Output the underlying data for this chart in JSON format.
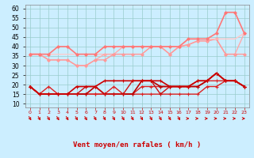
{
  "xlabel": "Vent moyen/en rafales ( km/h )",
  "x": [
    0,
    1,
    2,
    3,
    4,
    5,
    6,
    7,
    8,
    9,
    10,
    11,
    12,
    13,
    14,
    15,
    16,
    17,
    18,
    19,
    20,
    21,
    22,
    23
  ],
  "ylim": [
    8,
    62
  ],
  "bg_color": "#cceeff",
  "grid_color": "#99cccc",
  "series": [
    {
      "y": [
        36,
        36,
        36,
        36,
        36,
        36,
        36,
        36,
        36,
        36,
        36,
        36,
        36,
        40,
        40,
        40,
        40,
        44,
        44,
        44,
        44,
        44,
        44,
        47
      ],
      "color": "#ffbbbb",
      "lw": 0.8,
      "marker": null,
      "ms": 0
    },
    {
      "y": [
        36,
        36,
        33,
        33,
        33,
        30,
        30,
        33,
        36,
        36,
        40,
        40,
        40,
        40,
        40,
        36,
        40,
        41,
        43,
        43,
        44,
        36,
        36,
        47
      ],
      "color": "#ffaaaa",
      "lw": 1.0,
      "marker": "D",
      "ms": 1.8
    },
    {
      "y": [
        36,
        36,
        33,
        33,
        33,
        30,
        30,
        33,
        33,
        36,
        36,
        36,
        36,
        40,
        40,
        36,
        40,
        41,
        43,
        43,
        44,
        36,
        36,
        36
      ],
      "color": "#ff9999",
      "lw": 1.0,
      "marker": "D",
      "ms": 1.8
    },
    {
      "y": [
        36,
        36,
        36,
        36,
        36,
        36,
        36,
        36,
        40,
        40,
        40,
        40,
        40,
        40,
        40,
        40,
        40,
        44,
        44,
        44,
        44,
        44,
        44,
        47
      ],
      "color": "#ffcccc",
      "lw": 0.8,
      "marker": null,
      "ms": 0
    },
    {
      "y": [
        36,
        36,
        36,
        40,
        40,
        36,
        36,
        36,
        40,
        40,
        40,
        40,
        40,
        40,
        40,
        40,
        40,
        44,
        44,
        44,
        47,
        58,
        58,
        47
      ],
      "color": "#ff7777",
      "lw": 1.2,
      "marker": "D",
      "ms": 1.8
    },
    {
      "y": [
        19,
        15,
        19,
        15,
        15,
        15,
        15,
        15,
        15,
        19,
        15,
        15,
        15,
        15,
        15,
        15,
        15,
        15,
        15,
        19,
        19,
        22,
        22,
        19
      ],
      "color": "#dd2222",
      "lw": 1.0,
      "marker": "+",
      "ms": 3
    },
    {
      "y": [
        19,
        15,
        15,
        15,
        15,
        15,
        15,
        15,
        15,
        15,
        15,
        15,
        19,
        19,
        19,
        19,
        19,
        19,
        19,
        22,
        22,
        22,
        22,
        19
      ],
      "color": "#dd2222",
      "lw": 1.0,
      "marker": "+",
      "ms": 3
    },
    {
      "y": [
        19,
        15,
        15,
        15,
        15,
        15,
        15,
        19,
        15,
        15,
        15,
        15,
        22,
        22,
        19,
        19,
        19,
        19,
        19,
        22,
        26,
        22,
        22,
        19
      ],
      "color": "#bb0000",
      "lw": 1.2,
      "marker": "+",
      "ms": 3
    },
    {
      "y": [
        19,
        15,
        15,
        15,
        15,
        15,
        19,
        19,
        15,
        15,
        15,
        22,
        22,
        22,
        15,
        19,
        19,
        19,
        22,
        22,
        26,
        22,
        22,
        19
      ],
      "color": "#cc1111",
      "lw": 1.0,
      "marker": "+",
      "ms": 3
    },
    {
      "y": [
        19,
        15,
        15,
        15,
        15,
        19,
        19,
        19,
        22,
        22,
        22,
        22,
        22,
        22,
        22,
        19,
        19,
        19,
        22,
        22,
        26,
        22,
        22,
        19
      ],
      "color": "#cc0000",
      "lw": 1.2,
      "marker": "+",
      "ms": 3
    }
  ],
  "yticks": [
    10,
    15,
    20,
    25,
    30,
    35,
    40,
    45,
    50,
    55,
    60
  ],
  "wind_arrows_x": [
    0,
    1,
    2,
    3,
    4,
    5,
    6,
    7,
    8,
    9,
    10,
    11,
    12,
    13,
    14,
    15,
    16,
    17,
    18,
    19,
    20,
    21,
    22,
    23
  ],
  "wind_angles": [
    45,
    45,
    45,
    45,
    45,
    45,
    45,
    45,
    45,
    45,
    45,
    45,
    45,
    45,
    45,
    45,
    45,
    90,
    90,
    90,
    90,
    90,
    90,
    90
  ]
}
